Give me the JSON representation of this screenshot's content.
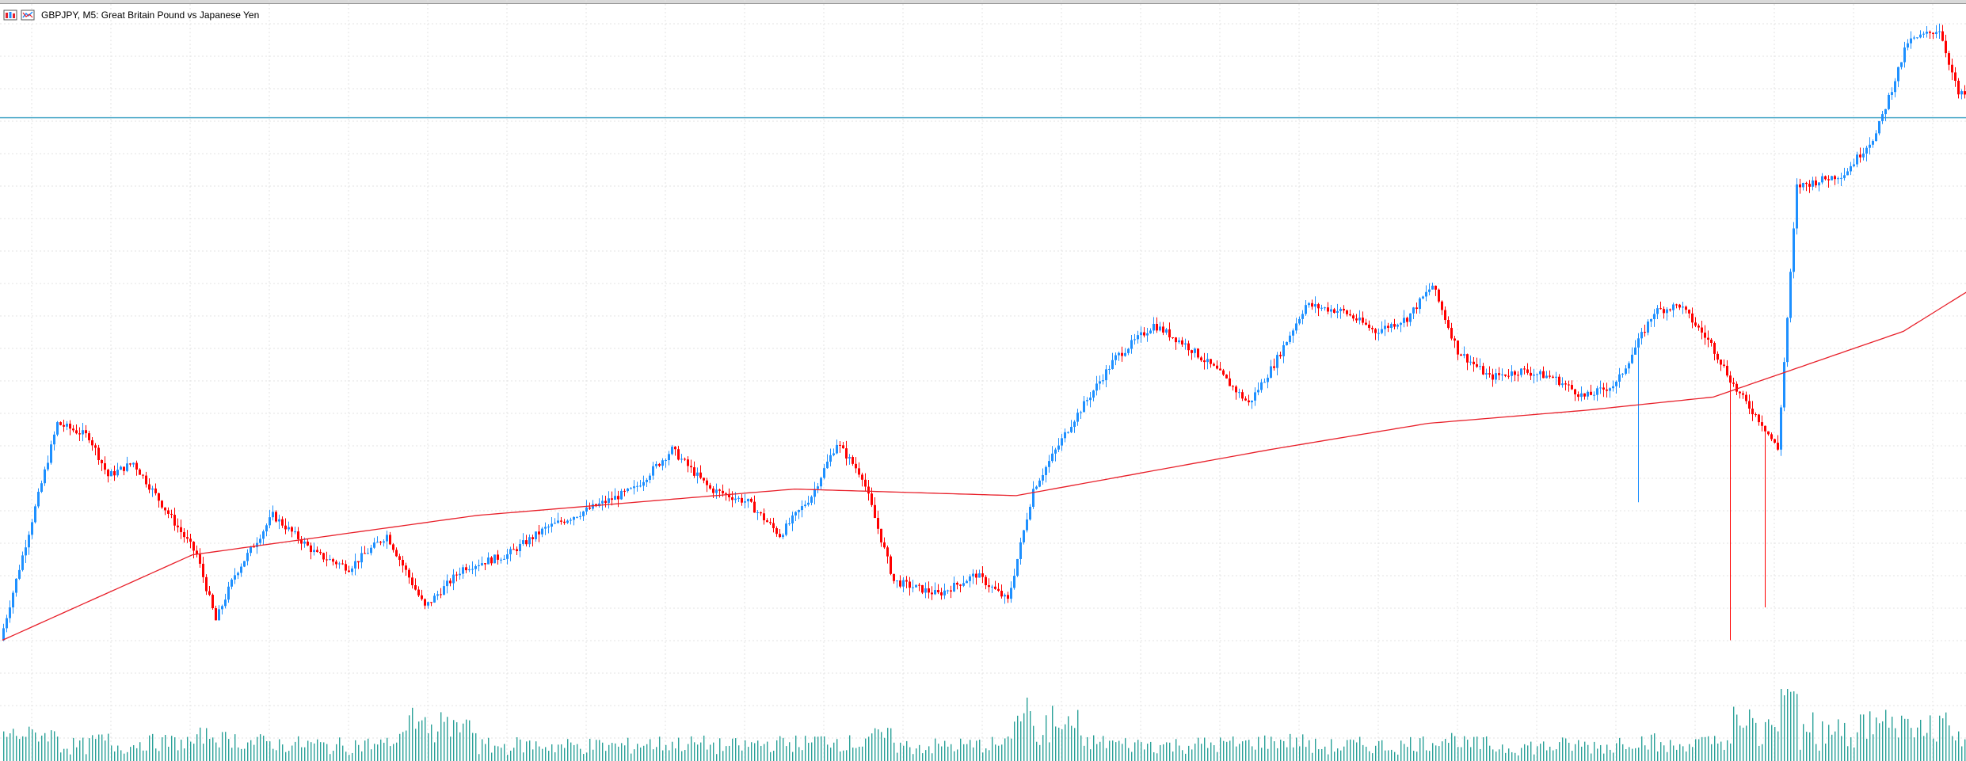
{
  "window": {
    "title": "GBPJPY, M5:  Great Britain Pound vs Japanese Yen",
    "icons": [
      "chart-bars-icon",
      "chart-template-icon"
    ]
  },
  "colors": {
    "bull": "#1e90ff",
    "bear": "#ff0000",
    "ma": "#e8202a",
    "hline": "#4aa8c8",
    "volume": "#2aa198",
    "grid": "#e3e3e3"
  },
  "chart_data": {
    "type": "candlestick",
    "symbol": "GBPJPY",
    "timeframe": "M5",
    "grid": true,
    "horizontal_line_level": 0.845,
    "price_scale": "relative 0 (bottom) to 1 (top), axis not printed",
    "price_path_keypoints": [
      [
        0,
        0.05
      ],
      [
        18,
        0.38
      ],
      [
        28,
        0.36
      ],
      [
        34,
        0.3
      ],
      [
        42,
        0.32
      ],
      [
        52,
        0.25
      ],
      [
        62,
        0.18
      ],
      [
        68,
        0.08
      ],
      [
        74,
        0.15
      ],
      [
        86,
        0.24
      ],
      [
        100,
        0.18
      ],
      [
        110,
        0.16
      ],
      [
        122,
        0.21
      ],
      [
        134,
        0.1
      ],
      [
        146,
        0.16
      ],
      [
        160,
        0.18
      ],
      [
        172,
        0.22
      ],
      [
        186,
        0.25
      ],
      [
        200,
        0.28
      ],
      [
        212,
        0.34
      ],
      [
        224,
        0.28
      ],
      [
        236,
        0.26
      ],
      [
        246,
        0.21
      ],
      [
        256,
        0.27
      ],
      [
        264,
        0.35
      ],
      [
        272,
        0.3
      ],
      [
        282,
        0.14
      ],
      [
        296,
        0.12
      ],
      [
        308,
        0.15
      ],
      [
        318,
        0.11
      ],
      [
        326,
        0.28
      ],
      [
        338,
        0.38
      ],
      [
        352,
        0.48
      ],
      [
        364,
        0.53
      ],
      [
        374,
        0.5
      ],
      [
        384,
        0.46
      ],
      [
        394,
        0.41
      ],
      [
        402,
        0.47
      ],
      [
        412,
        0.56
      ],
      [
        424,
        0.55
      ],
      [
        434,
        0.52
      ],
      [
        444,
        0.54
      ],
      [
        452,
        0.59
      ],
      [
        460,
        0.49
      ],
      [
        470,
        0.45
      ],
      [
        480,
        0.46
      ],
      [
        490,
        0.45
      ],
      [
        500,
        0.42
      ],
      [
        510,
        0.44
      ],
      [
        522,
        0.55
      ],
      [
        530,
        0.56
      ],
      [
        540,
        0.5
      ],
      [
        548,
        0.43
      ],
      [
        556,
        0.38
      ],
      [
        561,
        0.34
      ],
      [
        567,
        0.74
      ],
      [
        582,
        0.76
      ],
      [
        592,
        0.82
      ],
      [
        602,
        0.96
      ],
      [
        612,
        0.98
      ],
      [
        618,
        0.88
      ]
    ],
    "moving_average_keypoints": [
      [
        0,
        0.05
      ],
      [
        60,
        0.18
      ],
      [
        150,
        0.24
      ],
      [
        250,
        0.28
      ],
      [
        320,
        0.27
      ],
      [
        400,
        0.34
      ],
      [
        450,
        0.38
      ],
      [
        500,
        0.4
      ],
      [
        540,
        0.42
      ],
      [
        600,
        0.52
      ],
      [
        620,
        0.58
      ]
    ],
    "wick_spikes": [
      {
        "bar": 516,
        "low": 0.26
      },
      {
        "bar": 545,
        "low": 0.05
      },
      {
        "bar": 556,
        "low": 0.1
      }
    ],
    "volume_bars": true
  }
}
